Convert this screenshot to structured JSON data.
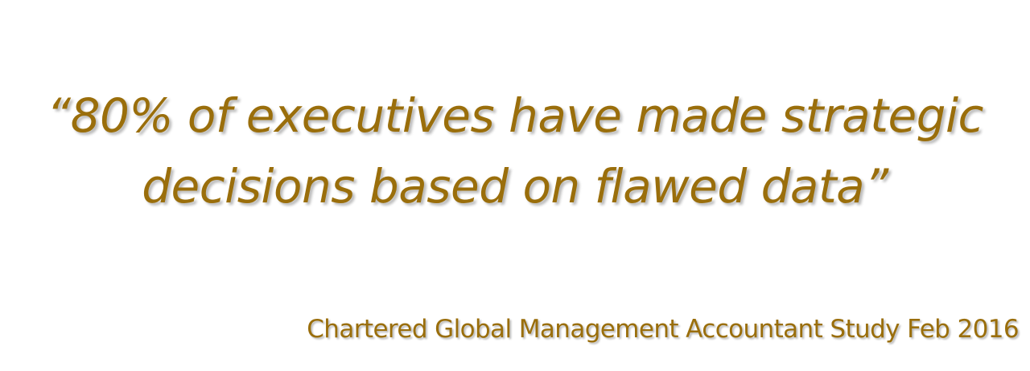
{
  "quote": {
    "line1": "“80% of executives have made strategic",
    "line2": "decisions based on flawed data”"
  },
  "attribution": "Chartered Global Management Accountant Study Feb 2016",
  "colors": {
    "text": "#9a6e0b",
    "background": "#ffffff"
  }
}
